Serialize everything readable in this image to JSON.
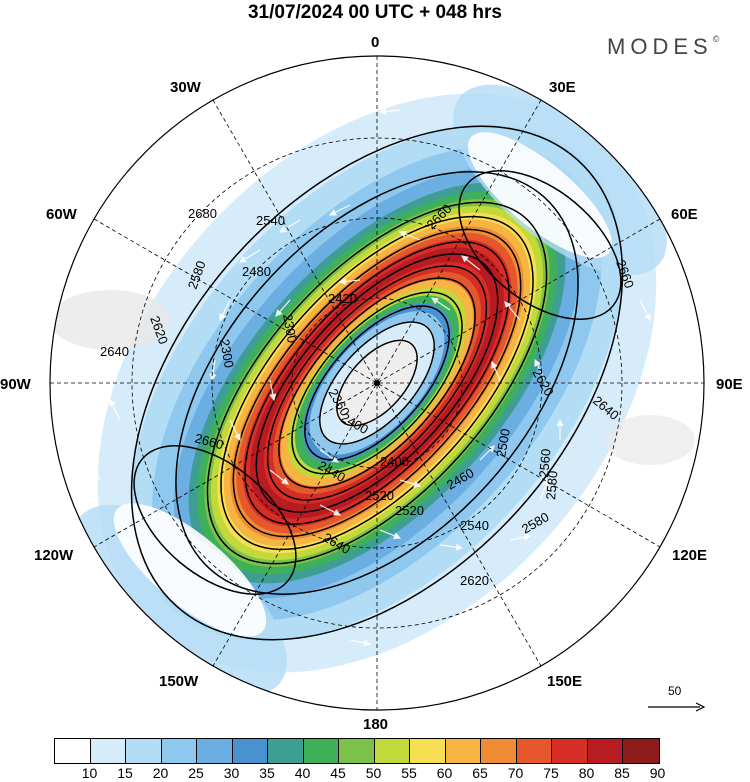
{
  "header": {
    "title": "31/07/2024  00 UTC  + 048 hrs",
    "brand": "MODES",
    "brand_mark": "©"
  },
  "map": {
    "projection": "south-polar-stereographic",
    "longitude_labels": {
      "top": "0",
      "bottom": "180",
      "l30w": "30W",
      "l30e": "30E",
      "l60w": "60W",
      "l60e": "60E",
      "l90w": "90W",
      "l90e": "90E",
      "l120w": "120W",
      "l120e": "120E",
      "l150w": "150W",
      "l150e": "150E"
    },
    "contour_labels": [
      "2680",
      "2540",
      "2660",
      "2580",
      "2480",
      "2660",
      "2620",
      "2420",
      "2360",
      "2640",
      "2640",
      "2620",
      "2660",
      "2400",
      "2500",
      "2460",
      "2560",
      "2580",
      "2540",
      "2520",
      "2640",
      "2620",
      "2440",
      "2300",
      "2300",
      "2520",
      "2400",
      "2580"
    ],
    "reference_vector": "50",
    "wind_fill_colors": [
      "#ffffff",
      "#d6ecfa",
      "#b3dcf5",
      "#8fc8ee",
      "#6aaee2",
      "#4a91cf",
      "#3f9e93",
      "#3fb05a",
      "#7cc24a",
      "#c2d93c",
      "#f7df53",
      "#f6b443",
      "#ef8c34",
      "#e5582b",
      "#d62e26",
      "#b81b22",
      "#8f1b1d"
    ]
  },
  "colorbar": {
    "colors": [
      "#ffffff",
      "#d6ecfa",
      "#b3dcf5",
      "#8fc8ee",
      "#6aaee2",
      "#4a91cf",
      "#3f9e93",
      "#3fb05a",
      "#7cc24a",
      "#c2d93c",
      "#f7df53",
      "#f6b443",
      "#ef8c34",
      "#e5582b",
      "#d62e26",
      "#b81b22",
      "#8f1b1d"
    ],
    "ticks": [
      "10",
      "15",
      "20",
      "25",
      "30",
      "35",
      "40",
      "45",
      "50",
      "55",
      "60",
      "65",
      "70",
      "75",
      "80",
      "85",
      "90"
    ]
  }
}
